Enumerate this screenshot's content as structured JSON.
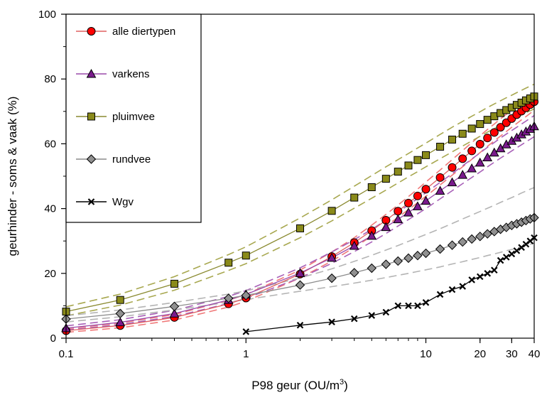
{
  "chart_data": {
    "type": "line",
    "title": "",
    "xlabel": "P98 geur (OU/m",
    "xlabel_sup": "3",
    "xlabel_end": ")",
    "ylabel": "geurhinder - soms & vaak (%)",
    "xscale": "log",
    "xlim": [
      0.1,
      40
    ],
    "ylim": [
      0,
      100
    ],
    "x_ticks": [
      0.1,
      1,
      10,
      20,
      30,
      40
    ],
    "x_tick_labels": [
      "0.1",
      "1",
      "10",
      "20",
      "30",
      "40"
    ],
    "y_ticks": [
      0,
      20,
      40,
      60,
      80,
      100
    ],
    "y_tick_labels": [
      "0",
      "20",
      "40",
      "60",
      "80",
      "100"
    ],
    "grid": false,
    "legend_position": "top-left",
    "series": [
      {
        "name": "alle diertypen",
        "color": "#ff0000",
        "line_color": "#e06060",
        "band_color": "#f07878",
        "marker": "circle",
        "x": [
          0.1,
          0.2,
          0.4,
          0.8,
          1,
          2,
          3,
          4,
          5,
          6,
          7,
          8,
          9,
          10,
          12,
          14,
          16,
          18,
          20,
          22,
          24,
          26,
          28,
          30,
          32,
          34,
          36,
          38,
          40
        ],
        "y": [
          2.3,
          3.9,
          6.4,
          10.6,
          12.4,
          19.8,
          25.2,
          29.5,
          33.2,
          36.4,
          39.2,
          41.7,
          43.9,
          46.0,
          49.6,
          52.7,
          55.4,
          57.8,
          59.9,
          61.8,
          63.5,
          65.1,
          66.5,
          67.8,
          69.0,
          70.1,
          71.1,
          72.1,
          73.0
        ],
        "band_lower": [
          1.8,
          3.2,
          5.6,
          9.6,
          11.4,
          18.6,
          23.8,
          28.0,
          31.5,
          34.6,
          37.3,
          39.7,
          41.8,
          43.8,
          47.3,
          50.3,
          52.9,
          55.2,
          57.3,
          59.2,
          60.9,
          62.4,
          63.8,
          65.1,
          66.3,
          67.4,
          68.4,
          69.4,
          70.3
        ],
        "band_upper": [
          2.9,
          4.7,
          7.3,
          11.7,
          13.5,
          21.0,
          26.6,
          31.0,
          34.9,
          38.2,
          41.1,
          43.7,
          46.0,
          48.2,
          51.9,
          55.1,
          57.9,
          60.4,
          62.5,
          64.4,
          66.1,
          67.7,
          69.1,
          70.4,
          71.6,
          72.7,
          73.7,
          74.7,
          75.6
        ]
      },
      {
        "name": "varkens",
        "color": "#7a1a8c",
        "line_color": "#9a4aaa",
        "band_color": "#a860b8",
        "marker": "triangle",
        "x": [
          0.1,
          0.2,
          0.4,
          0.8,
          1,
          2,
          3,
          4,
          5,
          6,
          7,
          8,
          9,
          10,
          12,
          14,
          16,
          18,
          20,
          22,
          24,
          26,
          28,
          30,
          32,
          34,
          36,
          38,
          40
        ],
        "y": [
          3.1,
          4.9,
          7.6,
          11.8,
          13.5,
          20.1,
          24.8,
          28.5,
          31.6,
          34.3,
          36.7,
          38.8,
          40.7,
          42.4,
          45.5,
          48.1,
          50.4,
          52.4,
          54.2,
          55.8,
          57.3,
          58.6,
          59.8,
          60.9,
          61.9,
          62.9,
          63.8,
          64.6,
          65.4
        ],
        "band_lower": [
          2.5,
          4.2,
          6.7,
          10.7,
          12.3,
          18.6,
          23.1,
          26.7,
          29.7,
          32.3,
          34.6,
          36.6,
          38.4,
          40.0,
          43.0,
          45.5,
          47.7,
          49.6,
          51.3,
          52.9,
          54.3,
          55.6,
          56.7,
          57.8,
          58.8,
          59.7,
          60.6,
          61.4,
          62.2
        ],
        "band_upper": [
          3.8,
          5.7,
          8.6,
          12.9,
          14.7,
          21.7,
          26.6,
          30.4,
          33.6,
          36.4,
          38.9,
          41.1,
          43.1,
          44.9,
          48.1,
          50.8,
          53.2,
          55.3,
          57.2,
          58.9,
          60.4,
          61.8,
          63.0,
          64.1,
          65.1,
          66.1,
          67.0,
          67.9,
          68.7
        ]
      },
      {
        "name": "pluimvee",
        "color": "#8a8a1a",
        "line_color": "#8a8a30",
        "band_color": "#a8a850",
        "marker": "square",
        "x": [
          0.1,
          0.2,
          0.4,
          0.8,
          1,
          2,
          3,
          4,
          5,
          6,
          7,
          8,
          9,
          10,
          12,
          14,
          16,
          18,
          20,
          22,
          24,
          26,
          28,
          30,
          32,
          34,
          36,
          38,
          40
        ],
        "y": [
          8.2,
          11.8,
          16.8,
          23.3,
          25.5,
          33.9,
          39.3,
          43.4,
          46.6,
          49.2,
          51.4,
          53.3,
          55.0,
          56.5,
          59.1,
          61.3,
          63.1,
          64.7,
          66.1,
          67.4,
          68.5,
          69.5,
          70.4,
          71.2,
          72.0,
          72.7,
          73.4,
          74.0,
          74.6
        ],
        "band_lower": [
          6.9,
          10.2,
          14.8,
          20.9,
          23.0,
          31.0,
          36.2,
          40.1,
          43.2,
          45.7,
          47.9,
          49.8,
          51.4,
          52.9,
          55.4,
          57.5,
          59.3,
          60.9,
          62.3,
          63.6,
          64.7,
          65.7,
          66.6,
          67.4,
          68.2,
          68.9,
          69.6,
          70.2,
          70.8
        ],
        "band_upper": [
          9.7,
          13.6,
          19.0,
          25.8,
          28.2,
          37.1,
          42.7,
          46.9,
          50.2,
          52.9,
          55.1,
          57.0,
          58.7,
          60.2,
          62.9,
          65.1,
          66.9,
          68.5,
          69.9,
          71.2,
          72.3,
          73.3,
          74.2,
          75.0,
          75.8,
          76.5,
          77.2,
          77.8,
          78.4
        ]
      },
      {
        "name": "rundvee",
        "color": "#909090",
        "line_color": "#8c8c8c",
        "band_color": "#b4b4b4",
        "marker": "diamond",
        "x": [
          0.1,
          0.2,
          0.4,
          0.8,
          1,
          2,
          3,
          4,
          5,
          6,
          7,
          8,
          9,
          10,
          12,
          14,
          16,
          18,
          20,
          22,
          24,
          26,
          28,
          30,
          32,
          34,
          36,
          38,
          40
        ],
        "y": [
          5.9,
          7.6,
          9.8,
          12.3,
          13.2,
          16.4,
          18.5,
          20.2,
          21.6,
          22.8,
          23.8,
          24.7,
          25.5,
          26.2,
          27.5,
          28.7,
          29.7,
          30.6,
          31.4,
          32.2,
          32.9,
          33.6,
          34.2,
          34.8,
          35.3,
          35.8,
          36.3,
          36.8,
          37.2
        ],
        "band_lower": [
          5.0,
          6.6,
          8.7,
          11.1,
          11.9,
          14.5,
          15.9,
          17.0,
          17.9,
          18.7,
          19.4,
          20.0,
          20.6,
          21.1,
          22.0,
          22.9,
          23.6,
          24.3,
          24.9,
          25.5,
          26.0,
          26.5,
          27.0,
          27.4,
          27.8,
          28.2,
          28.6,
          29.0,
          29.3
        ],
        "band_upper": [
          6.9,
          8.7,
          11.0,
          13.6,
          14.6,
          18.6,
          21.4,
          23.7,
          25.6,
          27.2,
          28.6,
          29.9,
          31.0,
          32.0,
          33.8,
          35.4,
          36.8,
          38.0,
          39.1,
          40.1,
          41.0,
          41.9,
          42.7,
          43.4,
          44.1,
          44.8,
          45.4,
          46.0,
          46.5
        ]
      },
      {
        "name": "Wgv",
        "color": "#000000",
        "line_color": "#000000",
        "marker": "x",
        "x": [
          1,
          2,
          3,
          4,
          5,
          6,
          7,
          8,
          9,
          10,
          12,
          14,
          16,
          18,
          20,
          22,
          24,
          26,
          28,
          30,
          32,
          34,
          36,
          38,
          40
        ],
        "y": [
          2.0,
          4.0,
          5.0,
          6.0,
          7.0,
          8.0,
          10.0,
          10.0,
          10.0,
          11.0,
          13.5,
          15.0,
          16.0,
          18.0,
          19.0,
          20.0,
          21.0,
          24.0,
          25.0,
          26.0,
          27.0,
          28.0,
          29.0,
          30.0,
          31.0
        ]
      }
    ]
  }
}
